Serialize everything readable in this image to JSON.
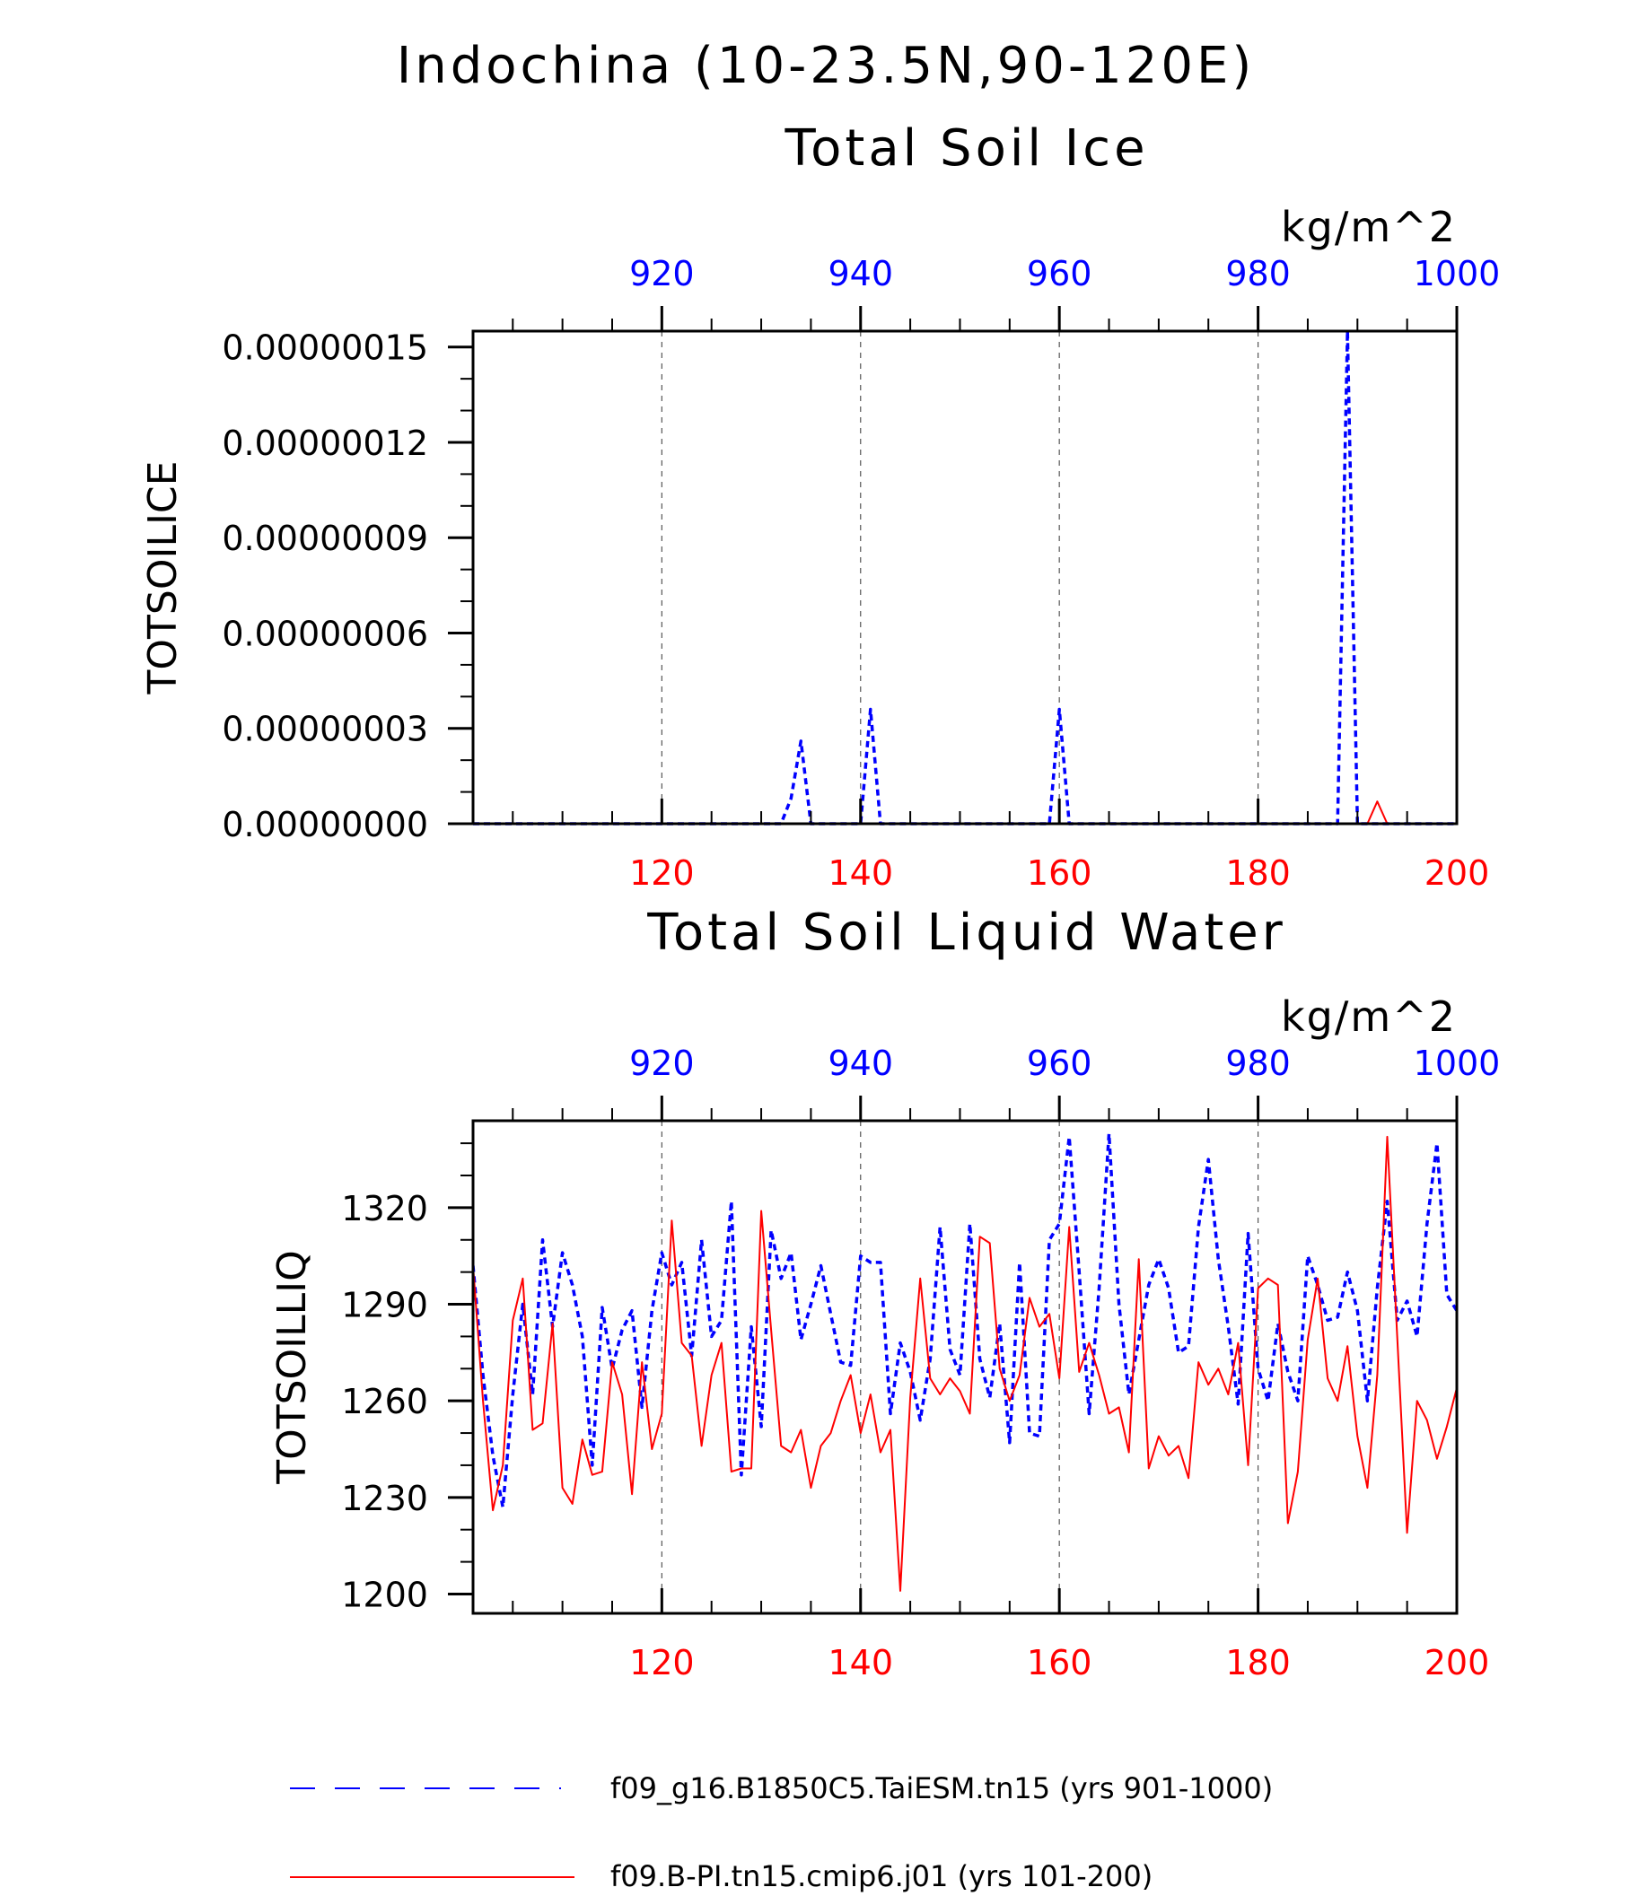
{
  "figure": {
    "title": "Indochina (10-23.5N,90-120E)"
  },
  "colors": {
    "series_a": "#0000ff",
    "series_b": "#ff0000",
    "axis": "#000000",
    "grid": "#555555"
  },
  "legend": {
    "placement": "bottom",
    "items": [
      {
        "name": "f09_g16.B1850C5.TaiESM.tn15 (yrs 901-1000)",
        "color": "#0000ff",
        "style": "dashed"
      },
      {
        "name": "f09.B-PI.tn15.cmip6.j01 (yrs 101-200)",
        "color": "#ff0000",
        "style": "solid"
      }
    ]
  },
  "chart_data": [
    {
      "type": "line",
      "title": "Total Soil Ice",
      "ylabel": "TOTSOILICE",
      "units": "kg/m^2",
      "ylim": [
        0,
        1.55e-07
      ],
      "yticks": [
        0,
        3e-08,
        6e-08,
        9e-08,
        1.2e-07,
        1.5e-07
      ],
      "ytick_labels": [
        "0.00000000",
        "0.00000003",
        "0.00000006",
        "0.00000009",
        "0.00000012",
        "0.00000015"
      ],
      "grid": "vertical dashed at major x ticks",
      "top_axis": {
        "range": [
          901,
          1000
        ],
        "ticks": [
          920,
          940,
          960,
          980,
          1000
        ],
        "color": "#0000ff"
      },
      "bottom_axis": {
        "range": [
          101,
          200
        ],
        "ticks": [
          120,
          140,
          160,
          180,
          200
        ],
        "color": "#ff0000"
      },
      "series": [
        {
          "axis": "top",
          "color": "#0000ff",
          "style": "dashed",
          "x": [
            901,
            932,
            933,
            934,
            935,
            940,
            941,
            942,
            943,
            959,
            960,
            961,
            962,
            987,
            988,
            989,
            990,
            1000
          ],
          "values": [
            0,
            0,
            8e-09,
            2.6e-08,
            0,
            0,
            3.6e-08,
            0,
            0,
            0,
            3.6e-08,
            0,
            0,
            0,
            0,
            1.55e-07,
            0,
            0
          ]
        },
        {
          "axis": "bottom",
          "color": "#ff0000",
          "style": "solid",
          "x": [
            101,
            191,
            192,
            193,
            200
          ],
          "values": [
            0,
            0,
            7e-09,
            0,
            0
          ]
        }
      ]
    },
    {
      "type": "line",
      "title": "Total Soil Liquid Water",
      "ylabel": "TOTSOILLIQ",
      "units": "kg/m^2",
      "ylim": [
        1194,
        1347
      ],
      "yticks": [
        1200,
        1230,
        1260,
        1290,
        1320
      ],
      "ytick_labels": [
        "1200",
        "1230",
        "1260",
        "1290",
        "1320"
      ],
      "grid": "vertical dashed at major x ticks",
      "top_axis": {
        "range": [
          901,
          1000
        ],
        "ticks": [
          920,
          940,
          960,
          980,
          1000
        ],
        "color": "#0000ff"
      },
      "bottom_axis": {
        "range": [
          101,
          200
        ],
        "ticks": [
          120,
          140,
          160,
          180,
          200
        ],
        "color": "#ff0000"
      },
      "series": [
        {
          "axis": "top",
          "color": "#0000ff",
          "style": "dashed",
          "x_start": 901,
          "values": [
            1302,
            1268,
            1243,
            1227,
            1262,
            1290,
            1262,
            1310,
            1283,
            1306,
            1296,
            1280,
            1240,
            1289,
            1270,
            1282,
            1288,
            1258,
            1288,
            1306,
            1296,
            1303,
            1274,
            1310,
            1280,
            1285,
            1322,
            1237,
            1283,
            1252,
            1313,
            1298,
            1306,
            1279,
            1290,
            1302,
            1287,
            1272,
            1271,
            1305,
            1303,
            1303,
            1256,
            1278,
            1269,
            1254,
            1273,
            1314,
            1276,
            1268,
            1315,
            1273,
            1261,
            1284,
            1247,
            1303,
            1250,
            1249,
            1310,
            1315,
            1342,
            1300,
            1256,
            1295,
            1343,
            1290,
            1262,
            1279,
            1296,
            1304,
            1295,
            1275,
            1277,
            1314,
            1335,
            1304,
            1283,
            1259,
            1312,
            1270,
            1260,
            1284,
            1269,
            1260,
            1305,
            1296,
            1285,
            1286,
            1300,
            1288,
            1260,
            1295,
            1322,
            1285,
            1291,
            1280,
            1315,
            1340,
            1293,
            1288
          ]
        },
        {
          "axis": "bottom",
          "color": "#ff0000",
          "style": "solid",
          "x_start": 101,
          "values": [
            1302,
            1260,
            1226,
            1240,
            1285,
            1298,
            1251,
            1253,
            1284,
            1233,
            1228,
            1248,
            1237,
            1238,
            1272,
            1262,
            1231,
            1272,
            1245,
            1256,
            1316,
            1278,
            1274,
            1246,
            1268,
            1278,
            1238,
            1239,
            1239,
            1319,
            1282,
            1246,
            1244,
            1251,
            1233,
            1246,
            1250,
            1260,
            1268,
            1250,
            1262,
            1244,
            1251,
            1201,
            1261,
            1298,
            1267,
            1262,
            1267,
            1263,
            1256,
            1311,
            1309,
            1270,
            1260,
            1268,
            1292,
            1283,
            1287,
            1267,
            1314,
            1269,
            1278,
            1268,
            1256,
            1258,
            1244,
            1304,
            1239,
            1249,
            1243,
            1246,
            1236,
            1272,
            1265,
            1270,
            1262,
            1278,
            1240,
            1295,
            1298,
            1296,
            1222,
            1238,
            1279,
            1298,
            1267,
            1260,
            1277,
            1249,
            1233,
            1268,
            1342,
            1280,
            1219,
            1260,
            1254,
            1242,
            1252,
            1264
          ]
        }
      ]
    }
  ]
}
